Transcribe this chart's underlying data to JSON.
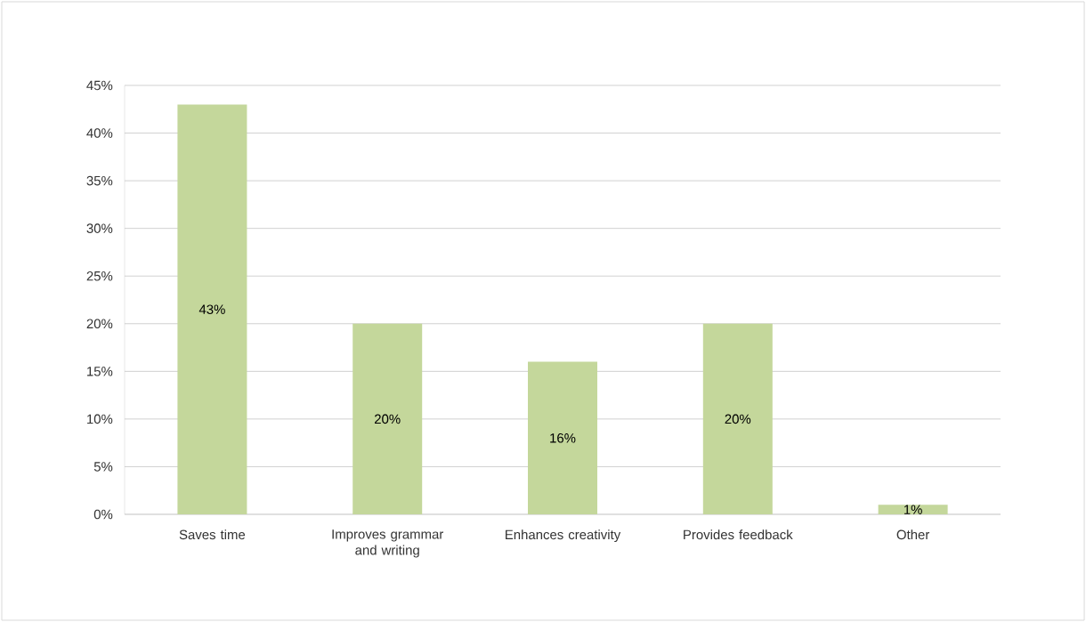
{
  "chart_data": {
    "type": "bar",
    "categories": [
      "Saves time",
      "Improves grammar and writing",
      "Enhances creativity",
      "Provides feedback",
      "Other"
    ],
    "values": [
      43,
      20,
      16,
      20,
      1
    ],
    "value_labels": [
      "43%",
      "20%",
      "16%",
      "20%",
      "1%"
    ],
    "color": "#c4d79b",
    "ylim": [
      0,
      45
    ],
    "yticks": [
      {
        "value": 0,
        "label": "0%"
      },
      {
        "value": 5,
        "label": "5%"
      },
      {
        "value": 10,
        "label": "10%"
      },
      {
        "value": 15,
        "label": "15%"
      },
      {
        "value": 20,
        "label": "20%"
      },
      {
        "value": 25,
        "label": "25%"
      },
      {
        "value": 30,
        "label": "30%"
      },
      {
        "value": 35,
        "label": "35%"
      },
      {
        "value": 40,
        "label": "40%"
      },
      {
        "value": 45,
        "label": "45%"
      }
    ],
    "grid": "y"
  }
}
